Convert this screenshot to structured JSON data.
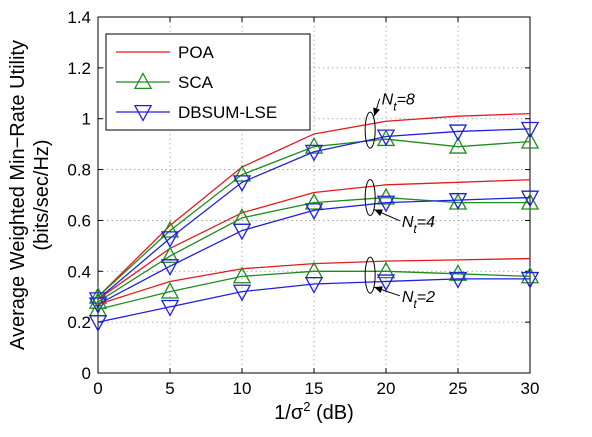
{
  "chart_data": {
    "type": "line",
    "xlabel": "1/σ",
    "xlabel_sup": "2",
    "xlabel_suffix": " (dB)",
    "ylabel_line1": "Average Weighted Min−Rate Utility",
    "ylabel_line2": "(bits/sec/Hz)",
    "xlim": [
      0,
      30
    ],
    "ylim": [
      0,
      1.4
    ],
    "xticks": [
      0,
      5,
      10,
      15,
      20,
      25,
      30
    ],
    "xtick_labels": [
      "0",
      "5",
      "10",
      "15",
      "20",
      "25",
      "30"
    ],
    "yticks": [
      0,
      0.2,
      0.4,
      0.6,
      0.8,
      1.0,
      1.2,
      1.4
    ],
    "ytick_labels": [
      "0",
      "0.2",
      "0.4",
      "0.6",
      "0.8",
      "1",
      "1.2",
      "1.4"
    ],
    "grid": true,
    "legend_position": "top-left",
    "x": [
      0,
      5,
      10,
      15,
      20,
      25,
      30
    ],
    "series": [
      {
        "name": "POA",
        "marker": "none",
        "color": "#e41a1c",
        "group": "Nt=8",
        "values": [
          0.3,
          0.58,
          0.81,
          0.94,
          0.99,
          1.01,
          1.02
        ]
      },
      {
        "name": "SCA",
        "marker": "triangle-up",
        "color": "#1e8c1e",
        "group": "Nt=8",
        "values": [
          0.3,
          0.56,
          0.78,
          0.89,
          0.92,
          0.89,
          0.91
        ]
      },
      {
        "name": "DBSUM-LSE",
        "marker": "triangle-down",
        "color": "#1f1fe0",
        "group": "Nt=8",
        "values": [
          0.29,
          0.53,
          0.75,
          0.87,
          0.93,
          0.95,
          0.96
        ]
      },
      {
        "name": "POA",
        "marker": "none",
        "color": "#e41a1c",
        "group": "Nt=4",
        "values": [
          0.29,
          0.49,
          0.63,
          0.71,
          0.74,
          0.75,
          0.76
        ]
      },
      {
        "name": "SCA",
        "marker": "triangle-up",
        "color": "#1e8c1e",
        "group": "Nt=4",
        "values": [
          0.28,
          0.46,
          0.61,
          0.67,
          0.69,
          0.67,
          0.67
        ]
      },
      {
        "name": "DBSUM-LSE",
        "marker": "triangle-down",
        "color": "#1f1fe0",
        "group": "Nt=4",
        "values": [
          0.27,
          0.42,
          0.56,
          0.64,
          0.67,
          0.68,
          0.69
        ]
      },
      {
        "name": "POA",
        "marker": "none",
        "color": "#e41a1c",
        "group": "Nt=2",
        "values": [
          0.27,
          0.36,
          0.41,
          0.43,
          0.44,
          0.445,
          0.45
        ]
      },
      {
        "name": "SCA",
        "marker": "triangle-up",
        "color": "#1e8c1e",
        "group": "Nt=2",
        "values": [
          0.25,
          0.32,
          0.38,
          0.4,
          0.4,
          0.39,
          0.38
        ]
      },
      {
        "name": "DBSUM-LSE",
        "marker": "triangle-down",
        "color": "#1f1fe0",
        "group": "Nt=2",
        "values": [
          0.2,
          0.26,
          0.32,
          0.35,
          0.36,
          0.37,
          0.37
        ]
      }
    ],
    "legend": [
      {
        "name": "POA",
        "marker": "none",
        "color": "#e41a1c"
      },
      {
        "name": "SCA",
        "marker": "triangle-up",
        "color": "#1e8c1e"
      },
      {
        "name": "DBSUM-LSE",
        "marker": "triangle-down",
        "color": "#1f1fe0"
      }
    ],
    "annotations": [
      {
        "group": "Nt=8",
        "symbol": "N",
        "subscript": "t",
        "rest": "=8",
        "ellipse_center": [
          18.9,
          0.955
        ],
        "text_anchor": [
          19.7,
          1.055
        ]
      },
      {
        "group": "Nt=4",
        "symbol": "N",
        "subscript": "t",
        "rest": "=4",
        "ellipse_center": [
          18.9,
          0.69
        ],
        "text_anchor": [
          21.1,
          0.575
        ]
      },
      {
        "group": "Nt=2",
        "symbol": "N",
        "subscript": "t",
        "rest": "=2",
        "ellipse_center": [
          18.9,
          0.385
        ],
        "text_anchor": [
          21.1,
          0.28
        ]
      }
    ]
  }
}
